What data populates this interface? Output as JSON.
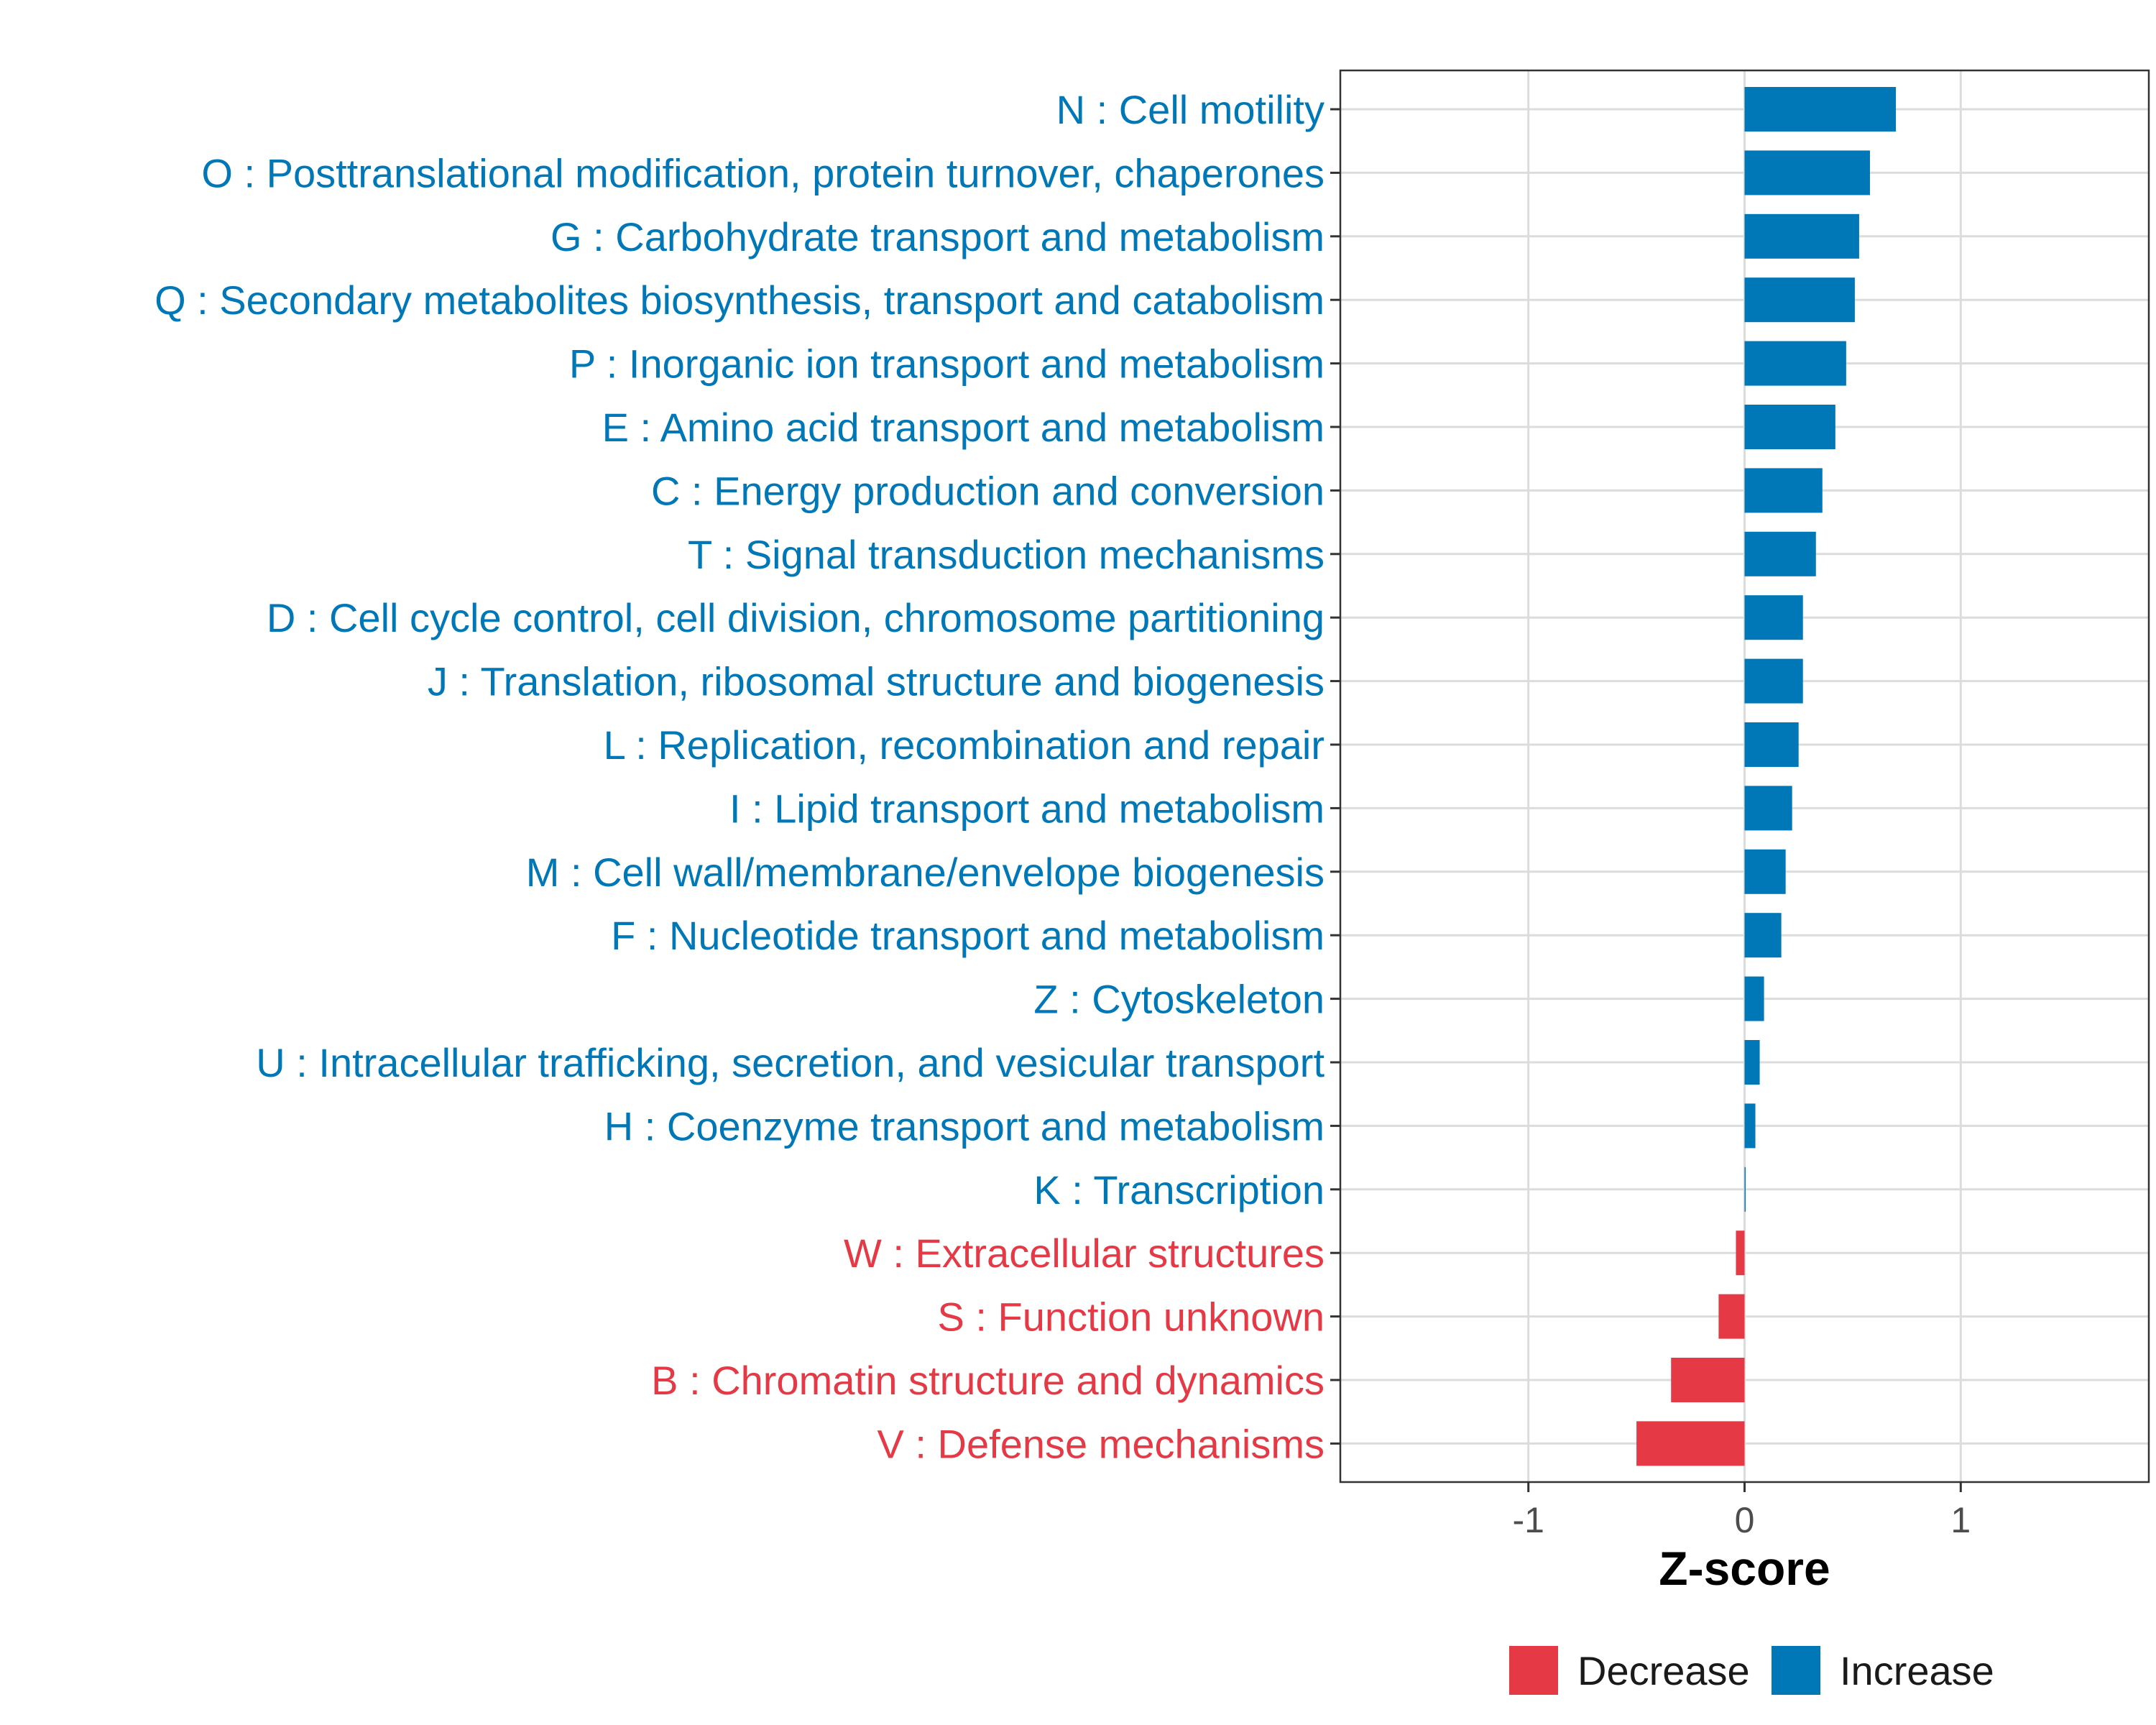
{
  "chart_data": {
    "type": "bar",
    "orientation": "horizontal",
    "xlabel": "Z-score",
    "xlim": [
      -1.87,
      1.87
    ],
    "xticks": [
      -1,
      0,
      1
    ],
    "xtick_labels": [
      "-1",
      "0",
      "1"
    ],
    "grid": true,
    "legend_position": "bottom",
    "legend": [
      {
        "label": "Decrease",
        "color": "#E63946"
      },
      {
        "label": "Increase",
        "color": "#0077B6"
      }
    ],
    "categories": [
      "N : Cell motility",
      "O : Posttranslational modification, protein turnover, chaperones",
      "G : Carbohydrate transport and metabolism",
      "Q : Secondary metabolites biosynthesis, transport and catabolism",
      "P : Inorganic ion transport and metabolism",
      "E : Amino acid transport and metabolism",
      "C : Energy production and conversion",
      "T : Signal transduction mechanisms",
      "D : Cell cycle control, cell division, chromosome partitioning",
      "J : Translation, ribosomal structure and biogenesis",
      "L : Replication, recombination and repair",
      "I : Lipid transport and metabolism",
      "M : Cell wall/membrane/envelope biogenesis",
      "F : Nucleotide transport and metabolism",
      "Z : Cytoskeleton",
      "U : Intracellular trafficking, secretion, and vesicular transport",
      "H : Coenzyme transport and metabolism",
      "K : Transcription",
      "W : Extracellular structures",
      "S : Function unknown",
      "B : Chromatin structure and dynamics",
      "V : Defense mechanisms"
    ],
    "values": [
      0.7,
      0.58,
      0.53,
      0.51,
      0.47,
      0.42,
      0.36,
      0.33,
      0.27,
      0.27,
      0.25,
      0.22,
      0.19,
      0.17,
      0.09,
      0.07,
      0.05,
      0.005,
      -0.04,
      -0.12,
      -0.34,
      -0.5
    ],
    "direction": [
      "Increase",
      "Increase",
      "Increase",
      "Increase",
      "Increase",
      "Increase",
      "Increase",
      "Increase",
      "Increase",
      "Increase",
      "Increase",
      "Increase",
      "Increase",
      "Increase",
      "Increase",
      "Increase",
      "Increase",
      "Increase",
      "Decrease",
      "Decrease",
      "Decrease",
      "Decrease"
    ]
  }
}
